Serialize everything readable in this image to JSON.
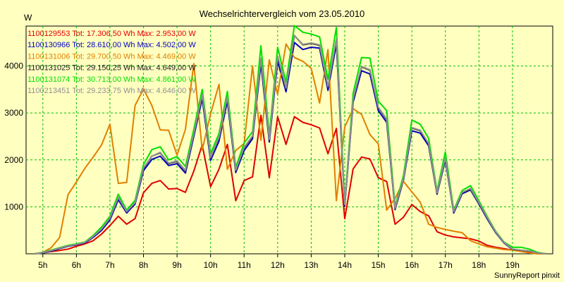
{
  "chart_data": {
    "type": "line",
    "title": "Wechselrichtervergleich vom 23.05.2010",
    "ylabel": "W",
    "xlabel": "",
    "ylim": [
      0,
      4850
    ],
    "xlim": [
      4.5,
      20.2
    ],
    "grid": true,
    "y_ticks": [
      1000,
      2000,
      3000,
      4000
    ],
    "x_ticks": [
      {
        "label": "5h",
        "x": 5
      },
      {
        "label": "6h",
        "x": 6
      },
      {
        "label": "7h",
        "x": 7
      },
      {
        "label": "8h",
        "x": 8
      },
      {
        "label": "9h",
        "x": 9
      },
      {
        "label": "10h",
        "x": 10
      },
      {
        "label": "11h",
        "x": 11
      },
      {
        "label": "12h",
        "x": 12
      },
      {
        "label": "13h",
        "x": 13
      },
      {
        "label": "14h",
        "x": 14
      },
      {
        "label": "15h",
        "x": 15
      },
      {
        "label": "16h",
        "x": 16
      },
      {
        "label": "17h",
        "x": 17
      },
      {
        "label": "18h",
        "x": 18
      },
      {
        "label": "19h",
        "x": 19
      }
    ],
    "legend_position": "top-left",
    "x": [
      4.75,
      5.0,
      5.25,
      5.5,
      5.75,
      6.0,
      6.25,
      6.5,
      6.75,
      7.0,
      7.25,
      7.5,
      7.75,
      8.0,
      8.25,
      8.5,
      8.75,
      9.0,
      9.25,
      9.5,
      9.75,
      10.0,
      10.25,
      10.5,
      10.75,
      11.0,
      11.25,
      11.5,
      11.75,
      12.0,
      12.25,
      12.5,
      12.75,
      13.0,
      13.25,
      13.5,
      13.75,
      14.0,
      14.25,
      14.5,
      14.75,
      15.0,
      15.25,
      15.5,
      15.75,
      16.0,
      16.25,
      16.5,
      16.75,
      17.0,
      17.25,
      17.5,
      17.75,
      18.0,
      18.25,
      18.5,
      18.75,
      19.0,
      19.25,
      19.5,
      19.75,
      20.0
    ],
    "series": [
      {
        "name": "1100129553",
        "legend": "1100129553 Tot: 17.306,50 Wh Max: 2.953,00 W",
        "color": "#e00000",
        "values": [
          0,
          20,
          50,
          70,
          100,
          160,
          210,
          280,
          420,
          600,
          800,
          630,
          750,
          1300,
          1500,
          1560,
          1380,
          1390,
          1310,
          1760,
          2320,
          1430,
          1800,
          2330,
          1130,
          1560,
          1640,
          2950,
          1620,
          2920,
          2330,
          2920,
          2800,
          2750,
          2680,
          2130,
          2670,
          750,
          1810,
          2060,
          2020,
          1620,
          1540,
          630,
          780,
          1050,
          900,
          810,
          470,
          400,
          360,
          340,
          320,
          270,
          180,
          140,
          110,
          80,
          60,
          40,
          10,
          0
        ]
      },
      {
        "name": "1100130966",
        "legend": "1100130966 Tot: 28.610,00 Wh Max: 4.502,00 W",
        "color": "#0000c0",
        "values": [
          0,
          20,
          60,
          110,
          160,
          190,
          230,
          350,
          500,
          720,
          1150,
          870,
          1060,
          1770,
          2010,
          2080,
          1880,
          1920,
          1720,
          2500,
          3300,
          1990,
          2400,
          3250,
          1730,
          2200,
          2450,
          4050,
          2380,
          4100,
          3450,
          4502,
          4350,
          4400,
          4380,
          3480,
          4470,
          1020,
          3230,
          3900,
          3830,
          3050,
          2800,
          940,
          1570,
          2620,
          2570,
          2300,
          1270,
          1990,
          870,
          1280,
          1360,
          1060,
          740,
          450,
          230,
          90,
          70,
          60,
          20,
          0
        ]
      },
      {
        "name": "1100131006",
        "legend": "1100131006 Tot: 29.700,50 Wh Max: 4.469,00 W",
        "color": "#e08000",
        "values": [
          0,
          30,
          130,
          350,
          1260,
          1530,
          1820,
          2060,
          2320,
          2760,
          1500,
          1520,
          3160,
          3510,
          3160,
          2640,
          2630,
          2100,
          2650,
          4050,
          2210,
          2980,
          3610,
          1800,
          2200,
          2350,
          4000,
          2420,
          4130,
          3400,
          4469,
          4180,
          4100,
          3950,
          3210,
          4350,
          1130,
          2700,
          3090,
          2970,
          2540,
          2340,
          930,
          1180,
          1540,
          1320,
          1100,
          630,
          560,
          520,
          480,
          450,
          280,
          210,
          150,
          120,
          90,
          80,
          50,
          20,
          0,
          0
        ]
      },
      {
        "name": "1100131025",
        "legend": "1100131025 Tot: 29.150,25 Wh Max: 4.649,00 W",
        "color": "#202020",
        "values": [
          0,
          25,
          70,
          120,
          170,
          200,
          240,
          370,
          530,
          760,
          1200,
          900,
          1090,
          1820,
          2080,
          2150,
          1920,
          1970,
          1770,
          2550,
          3380,
          2040,
          2470,
          3330,
          1770,
          2260,
          2500,
          4150,
          2430,
          4200,
          3520,
          4649,
          4450,
          4480,
          4440,
          3550,
          4560,
          1040,
          3290,
          3980,
          3910,
          3110,
          2860,
          960,
          1600,
          2680,
          2620,
          2340,
          1290,
          2030,
          890,
          1300,
          1380,
          1080,
          760,
          460,
          240,
          95,
          75,
          60,
          20,
          0
        ]
      },
      {
        "name": "1100131074",
        "legend": "1100131074 Tot: 30.713,00 Wh Max: 4.861,00 W",
        "color": "#00e000",
        "values": [
          0,
          30,
          80,
          130,
          180,
          210,
          250,
          390,
          570,
          800,
          1270,
          930,
          1140,
          1900,
          2220,
          2280,
          2000,
          2070,
          1860,
          2650,
          3500,
          2130,
          2560,
          3460,
          1840,
          2360,
          2600,
          4430,
          2530,
          4400,
          3650,
          4861,
          4720,
          4680,
          4620,
          3720,
          4820,
          1080,
          3420,
          4180,
          4170,
          3250,
          3050,
          1010,
          1670,
          2850,
          2760,
          2460,
          1340,
          2170,
          930,
          1350,
          1450,
          1130,
          790,
          480,
          250,
          140,
          140,
          100,
          30,
          0
        ]
      },
      {
        "name": "1100213451",
        "legend": "1100213451 Tot: 29.233,75 Wh Max: 4.646,00 W",
        "color": "#909090",
        "values": [
          0,
          25,
          70,
          120,
          170,
          200,
          240,
          370,
          530,
          760,
          1200,
          900,
          1090,
          1830,
          2080,
          2160,
          1930,
          1980,
          1780,
          2560,
          3390,
          2050,
          2480,
          3340,
          1780,
          2270,
          2510,
          4160,
          2440,
          4210,
          3530,
          4646,
          4460,
          4490,
          4450,
          3560,
          4570,
          1050,
          3300,
          3990,
          3920,
          3120,
          2870,
          970,
          1610,
          2690,
          2630,
          2350,
          1300,
          2040,
          900,
          1310,
          1390,
          1090,
          770,
          470,
          240,
          100,
          80,
          60,
          20,
          0
        ]
      }
    ]
  },
  "footer": "SunnyReport pinxit"
}
